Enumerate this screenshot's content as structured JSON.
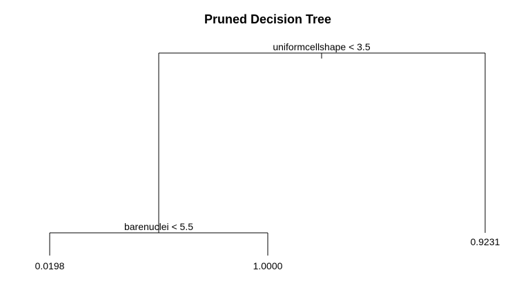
{
  "title": "Pruned Decision Tree",
  "tree": {
    "root": {
      "split_label": "uniformcellshape < 3.5",
      "left": {
        "split_label": "barenuclei < 5.5",
        "left": {
          "leaf_label": "0.0198"
        },
        "right": {
          "leaf_label": "1.0000"
        }
      },
      "right": {
        "leaf_label": "0.9231"
      }
    }
  },
  "colors": {
    "background": "#ffffff",
    "lines": "#000000",
    "text": "#000000"
  }
}
